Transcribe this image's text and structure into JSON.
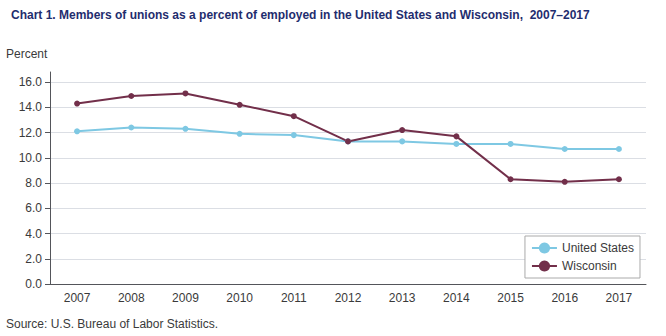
{
  "chart_data": {
    "type": "line",
    "title": "Chart 1. Members of unions as a percent of employed in the United States and Wisconsin,  2007–2017",
    "ylabel": "Percent",
    "annotation": "Source: U.S. Bureau of Labor Statistics.",
    "categories": [
      2007,
      2008,
      2009,
      2010,
      2011,
      2012,
      2013,
      2014,
      2015,
      2016,
      2017
    ],
    "series": [
      {
        "name": "United States",
        "color": "#7EC8E3",
        "marker": "circle",
        "values": [
          12.1,
          12.4,
          12.3,
          11.9,
          11.8,
          11.3,
          11.3,
          11.1,
          11.1,
          10.7,
          10.7
        ]
      },
      {
        "name": "Wisconsin",
        "color": "#722F4A",
        "marker": "circle",
        "values": [
          14.3,
          14.9,
          15.1,
          14.2,
          13.3,
          11.3,
          12.2,
          11.7,
          8.3,
          8.1,
          8.3
        ]
      }
    ],
    "ylim": [
      0.0,
      16.8
    ],
    "yticks": [
      {
        "value": 0.0,
        "label": "0.0"
      },
      {
        "value": 2.0,
        "label": "2.0"
      },
      {
        "value": 4.0,
        "label": "4.0"
      },
      {
        "value": 6.0,
        "label": "6.0"
      },
      {
        "value": 8.0,
        "label": "8.0"
      },
      {
        "value": 10.0,
        "label": "10.0"
      },
      {
        "value": 12.0,
        "label": "12.0"
      },
      {
        "value": 14.0,
        "label": "14.0"
      },
      {
        "value": 16.0,
        "label": "16.0"
      }
    ],
    "grid": true,
    "legend": "lower right"
  }
}
